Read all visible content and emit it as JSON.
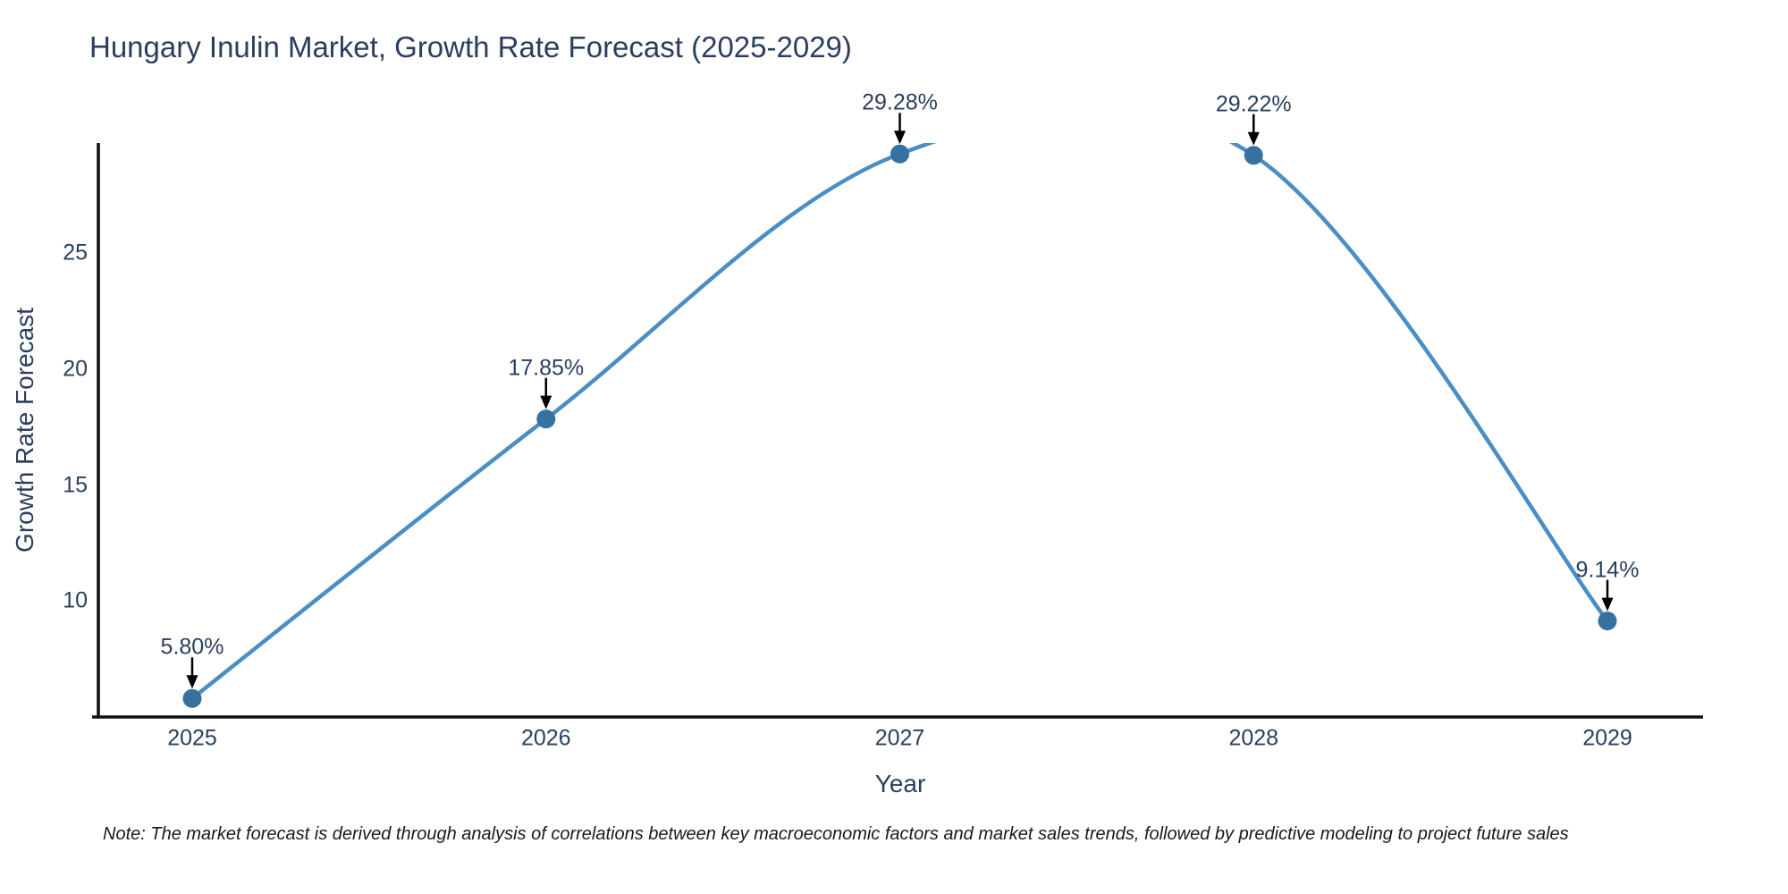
{
  "title": "Hungary Inulin Market, Growth Rate Forecast (2025-2029)",
  "note": "Note: The market forecast is derived through analysis of correlations between key macroeconomic factors and market sales trends, followed by predictive modeling to project future sales",
  "chart_data": {
    "type": "line",
    "title": "Hungary Inulin Market, Growth Rate Forecast (2025-2029)",
    "xlabel": "Year",
    "ylabel": "Growth Rate Forecast",
    "categories": [
      "2025",
      "2026",
      "2027",
      "2028",
      "2029"
    ],
    "values": [
      5.8,
      17.85,
      29.28,
      29.22,
      9.14
    ],
    "point_labels": [
      "5.80%",
      "17.85%",
      "29.28%",
      "29.22%",
      "9.14%"
    ],
    "yticks": [
      10,
      15,
      20,
      25
    ],
    "ylim": [
      5.0,
      29.75
    ],
    "line_shape": "spline",
    "grid": false,
    "legend_visible": false,
    "colors": {
      "line": "#4a8ec3",
      "marker": "#36719f",
      "text": "#2a3f5f",
      "axis": "#0f0f0f",
      "arrow": "#000000"
    }
  }
}
